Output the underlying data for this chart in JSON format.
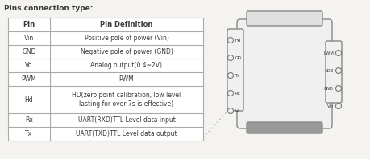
{
  "title": "Pins connection type:",
  "title_fontsize": 6.5,
  "title_fontweight": "bold",
  "bg_color": "#f5f3ef",
  "table_header": [
    "Pin",
    "Pin Definition"
  ],
  "table_rows": [
    [
      "Vin",
      "Positive pole of power (Vin)"
    ],
    [
      "GND",
      "Negative pole of power (GND)"
    ],
    [
      "Vo",
      "Analog output(0.4~2V)"
    ],
    [
      "PWM",
      "PWM"
    ],
    [
      "Hd",
      "HD(zero point calibration, low level\nlasting for over 7s is effective)"
    ],
    [
      "Rx",
      "UART(RXD)TTL Level data input"
    ],
    [
      "Tx",
      "UART(TXD)TTL Level data output"
    ]
  ],
  "left_pins": [
    "Hd",
    "GD",
    "Tx",
    "Rx",
    "Vo"
  ],
  "right_pins": [
    "PWM",
    "ADB",
    "GND",
    "Vin"
  ],
  "text_color": "#3a3a3a",
  "line_color": "#aaaacc",
  "table_line_color": "#aaaaaa",
  "chip_body_color": "#f0f0f0",
  "chip_edge_color": "#888888",
  "chip_top_color": "#e0e0e0",
  "chip_bottom_color": "#999999",
  "pin_circle_edge": "#777777",
  "pin_circle_face": "#f0f0f0"
}
